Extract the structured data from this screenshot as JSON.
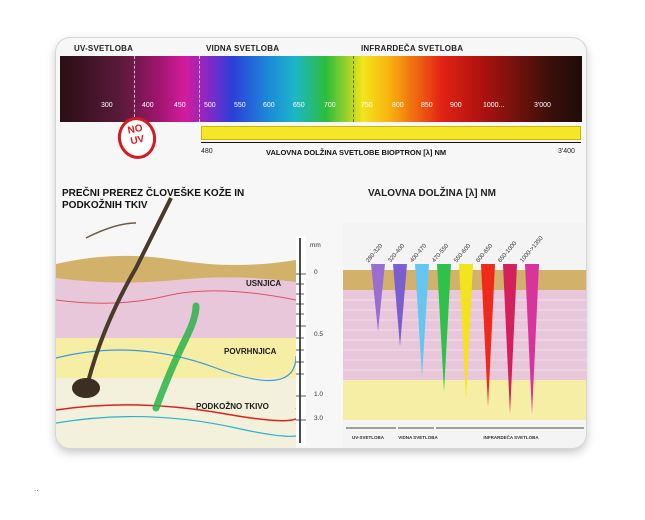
{
  "header": {
    "uv": "UV-SVETLOBA",
    "visible": "VIDNA SVETLOBA",
    "infrared": "INFRARDEČA SVETLOBA"
  },
  "spectrum_ticks": [
    "300",
    "400",
    "450",
    "500",
    "550",
    "600",
    "650",
    "700",
    "750",
    "800",
    "850",
    "900",
    "1000...",
    "3'000"
  ],
  "badge": {
    "line1": "NO",
    "line2": "UV"
  },
  "bioptron_bar": {
    "start": "480",
    "end": "3'400",
    "label": "VALOVNA DOLŽINA SVETLOBE BIOPTRON [λ] NM"
  },
  "cross_section": {
    "title": "PREČNI PREREZ ČLOVEŠKE KOŽE IN PODKOŽNIH TKIV",
    "layers": [
      "USNJICA",
      "POVRHNJICA",
      "PODKOŽNO TKIVO"
    ],
    "ruler_unit": "mm",
    "ruler_marks": [
      "0",
      "0.5",
      "1.0",
      "3.0"
    ]
  },
  "wavelength_panel": {
    "title": "VALOVNA DOLŽINA [λ] NM",
    "bands": [
      "280-320",
      "320-400",
      "400-470",
      "470-550",
      "550-600",
      "600-650",
      "650-1000",
      "1000->1350"
    ],
    "band_colors": [
      "#9a6ed1",
      "#7b5fcf",
      "#66c6ef",
      "#2ec24a",
      "#f3e41d",
      "#ef2a1b",
      "#d4205c",
      "#d7359b"
    ],
    "band_depths": [
      0.45,
      0.55,
      0.75,
      0.85,
      0.9,
      0.95,
      1.0,
      1.0
    ],
    "categories": [
      "UV-SVETLOBA",
      "VIDNA SVETLOBA",
      "INFRARDEČA SVETLOBA"
    ]
  },
  "footer_mark": "..",
  "colors": {
    "uv_badge": "#d71920",
    "bioptron_bar": "#f5e629",
    "dermis": "#e9c7db",
    "epidermis": "#d2b26b",
    "subcutis": "#f6eea4"
  }
}
